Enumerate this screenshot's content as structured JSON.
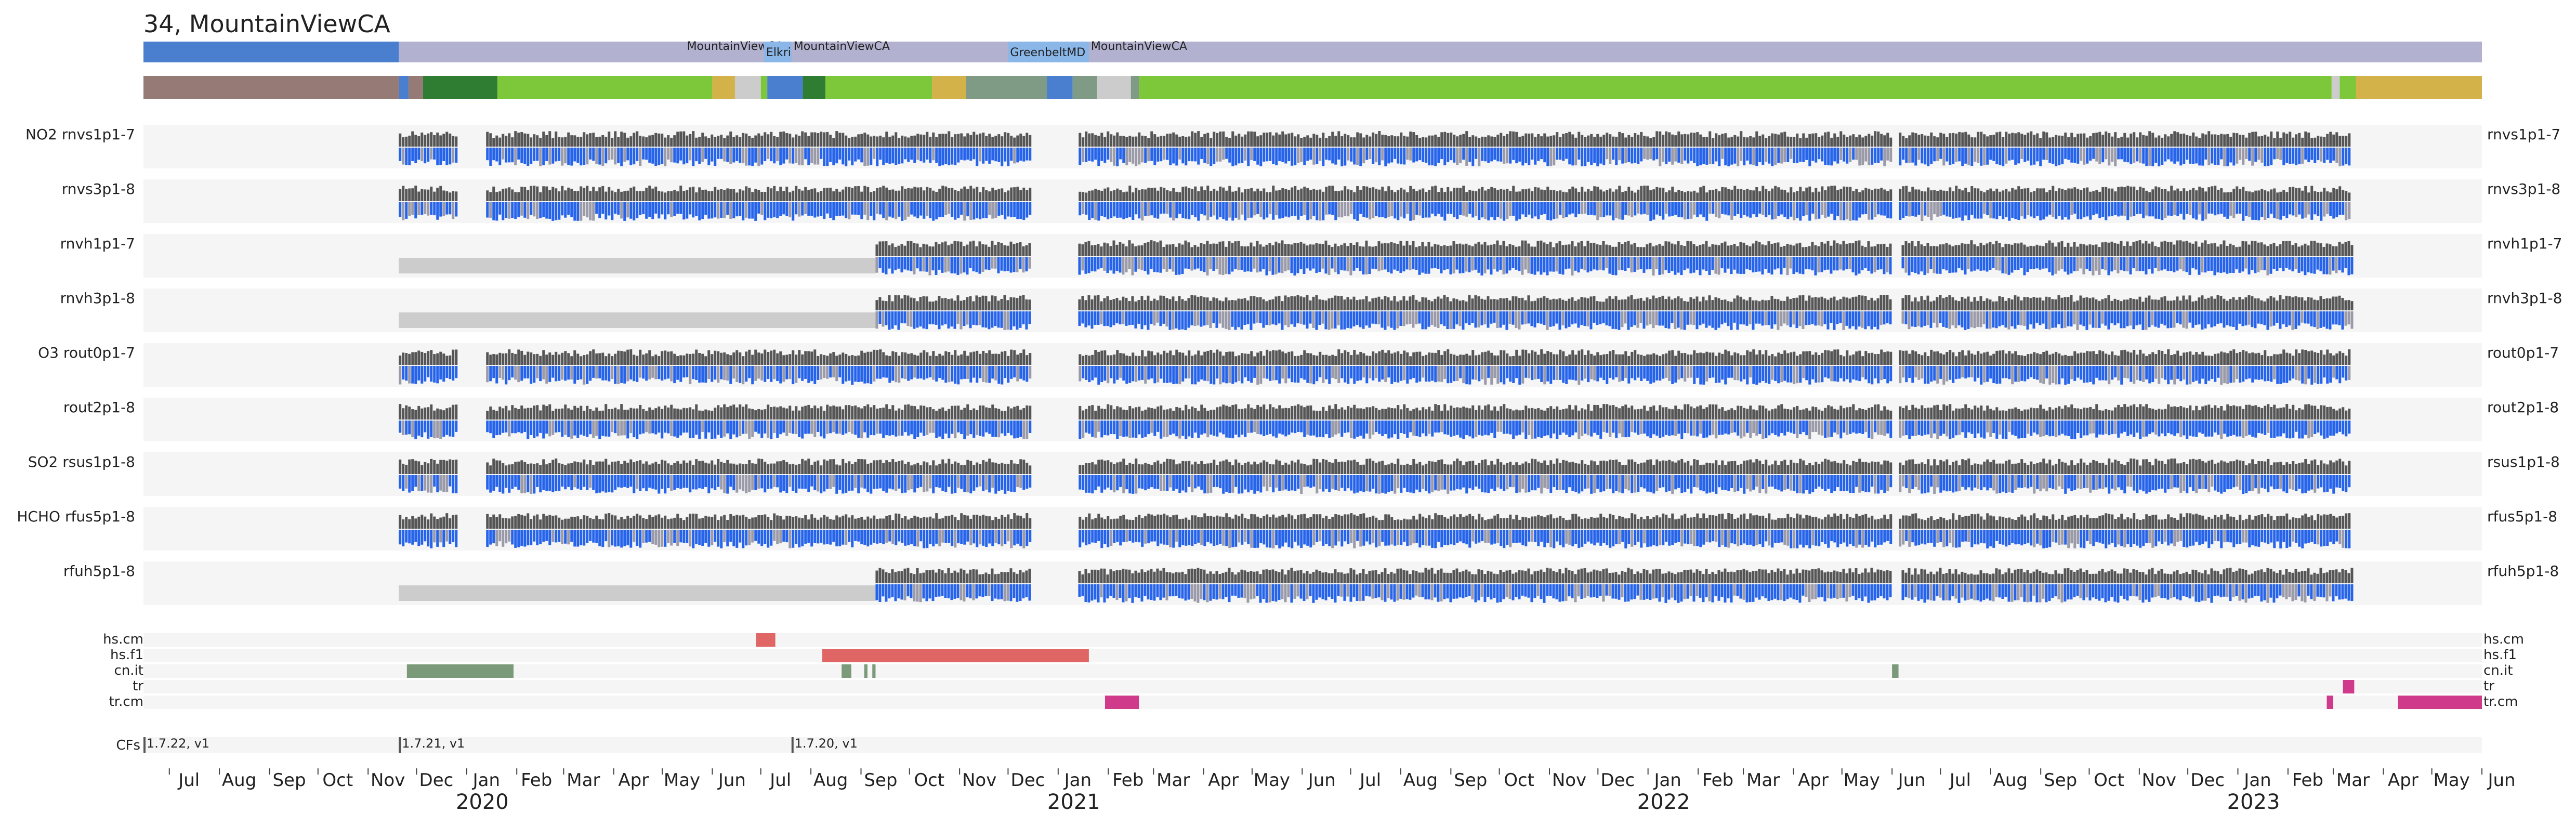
{
  "title": "34, MountainViewCA",
  "colors": {
    "panel_bg": "#f5f5f5",
    "upper_bar": "#555555",
    "lower_fill": "#2563eb",
    "lower_mix": "#9a9aa8",
    "missing": "#cccccc",
    "location_band": "#b2b2d0",
    "location_main": "#4a7fcf",
    "location_highlight": "#8ab6e8",
    "flag_hs_cm": "#e06666",
    "flag_hs_f1": "#e06666",
    "flag_cn_it": "#7a9a7a",
    "flag_tr": "#d03a8a",
    "flag_tr_cm": "#d03a8a",
    "timeline_palette": {
      "brown": "#967a76",
      "dkgreen": "#2e7d32",
      "green": "#7dc73a",
      "gold": "#d4b24a",
      "blue": "#4a7fcf",
      "sage": "#7f9a85",
      "gray": "#cccccc"
    }
  },
  "chart_data": {
    "type": "timeline",
    "x_range": [
      "2019-06-15",
      "2023-06-01"
    ],
    "year_labels": [
      "2020",
      "2021",
      "2022",
      "2023"
    ],
    "year_dates": [
      "2020-01-01",
      "2021-01-01",
      "2022-01-01",
      "2023-01-01"
    ],
    "month_ticks": [
      {
        "label": "Jul",
        "date": "2019-07-01"
      },
      {
        "label": "Aug",
        "date": "2019-08-01"
      },
      {
        "label": "Sep",
        "date": "2019-09-01"
      },
      {
        "label": "Oct",
        "date": "2019-10-01"
      },
      {
        "label": "Nov",
        "date": "2019-11-01"
      },
      {
        "label": "Dec",
        "date": "2019-12-01"
      },
      {
        "label": "Jan",
        "date": "2020-01-01"
      },
      {
        "label": "Feb",
        "date": "2020-02-01"
      },
      {
        "label": "Mar",
        "date": "2020-03-01"
      },
      {
        "label": "Apr",
        "date": "2020-04-01"
      },
      {
        "label": "May",
        "date": "2020-05-01"
      },
      {
        "label": "Jun",
        "date": "2020-06-01"
      },
      {
        "label": "Jul",
        "date": "2020-07-01"
      },
      {
        "label": "Aug",
        "date": "2020-08-01"
      },
      {
        "label": "Sep",
        "date": "2020-09-01"
      },
      {
        "label": "Oct",
        "date": "2020-10-01"
      },
      {
        "label": "Nov",
        "date": "2020-11-01"
      },
      {
        "label": "Dec",
        "date": "2020-12-01"
      },
      {
        "label": "Jan",
        "date": "2021-01-01"
      },
      {
        "label": "Feb",
        "date": "2021-02-01"
      },
      {
        "label": "Mar",
        "date": "2021-03-01"
      },
      {
        "label": "Apr",
        "date": "2021-04-01"
      },
      {
        "label": "May",
        "date": "2021-05-01"
      },
      {
        "label": "Jun",
        "date": "2021-06-01"
      },
      {
        "label": "Jul",
        "date": "2021-07-01"
      },
      {
        "label": "Aug",
        "date": "2021-08-01"
      },
      {
        "label": "Sep",
        "date": "2021-09-01"
      },
      {
        "label": "Oct",
        "date": "2021-10-01"
      },
      {
        "label": "Nov",
        "date": "2021-11-01"
      },
      {
        "label": "Dec",
        "date": "2021-12-01"
      },
      {
        "label": "Jan",
        "date": "2022-01-01"
      },
      {
        "label": "Feb",
        "date": "2022-02-01"
      },
      {
        "label": "Mar",
        "date": "2022-03-01"
      },
      {
        "label": "Apr",
        "date": "2022-04-01"
      },
      {
        "label": "May",
        "date": "2022-05-01"
      },
      {
        "label": "Jun",
        "date": "2022-06-01"
      },
      {
        "label": "Jul",
        "date": "2022-07-01"
      },
      {
        "label": "Aug",
        "date": "2022-08-01"
      },
      {
        "label": "Sep",
        "date": "2022-09-01"
      },
      {
        "label": "Oct",
        "date": "2022-10-01"
      },
      {
        "label": "Nov",
        "date": "2022-11-01"
      },
      {
        "label": "Dec",
        "date": "2022-12-01"
      },
      {
        "label": "Jan",
        "date": "2023-01-01"
      },
      {
        "label": "Feb",
        "date": "2023-02-01"
      },
      {
        "label": "Mar",
        "date": "2023-03-01"
      },
      {
        "label": "Apr",
        "date": "2023-04-01"
      },
      {
        "label": "May",
        "date": "2023-05-01"
      },
      {
        "label": "Jun",
        "date": "2023-06-01"
      }
    ],
    "locations": [
      {
        "label": "",
        "start": "2019-06-15",
        "end": "2019-11-20",
        "kind": "main"
      },
      {
        "label": "MountainViewCA",
        "start": "2020-05-15",
        "end": "2020-05-20",
        "kind": "band"
      },
      {
        "label": "ElkridgeMD",
        "start": "2020-07-03",
        "end": "2020-07-20",
        "kind": "highlight"
      },
      {
        "label": "MountainViewCA",
        "start": "2020-07-20",
        "end": "2020-12-01",
        "kind": "band"
      },
      {
        "label": "GreenbeltMD",
        "start": "2020-12-01",
        "end": "2021-01-20",
        "kind": "highlight"
      },
      {
        "label": "MountainViewCA",
        "start": "2021-01-20",
        "end": "2023-06-01",
        "kind": "band"
      }
    ],
    "status_timeline": [
      {
        "start": "2019-06-15",
        "end": "2019-11-20",
        "color": "brown"
      },
      {
        "start": "2019-11-20",
        "end": "2019-11-26",
        "color": "blue"
      },
      {
        "start": "2019-11-26",
        "end": "2019-12-05",
        "color": "brown"
      },
      {
        "start": "2019-12-05",
        "end": "2020-01-20",
        "color": "dkgreen"
      },
      {
        "start": "2020-01-20",
        "end": "2020-06-01",
        "color": "green"
      },
      {
        "start": "2020-06-01",
        "end": "2020-06-15",
        "color": "gold"
      },
      {
        "start": "2020-06-15",
        "end": "2020-07-01",
        "color": "gray"
      },
      {
        "start": "2020-07-01",
        "end": "2020-07-05",
        "color": "green"
      },
      {
        "start": "2020-07-05",
        "end": "2020-07-27",
        "color": "blue"
      },
      {
        "start": "2020-07-27",
        "end": "2020-08-10",
        "color": "dkgreen"
      },
      {
        "start": "2020-08-10",
        "end": "2020-10-15",
        "color": "green"
      },
      {
        "start": "2020-10-15",
        "end": "2020-11-05",
        "color": "gold"
      },
      {
        "start": "2020-11-05",
        "end": "2020-12-25",
        "color": "sage"
      },
      {
        "start": "2020-12-25",
        "end": "2021-01-10",
        "color": "blue"
      },
      {
        "start": "2021-01-10",
        "end": "2021-01-25",
        "color": "sage"
      },
      {
        "start": "2021-01-25",
        "end": "2021-02-15",
        "color": "gray"
      },
      {
        "start": "2021-02-15",
        "end": "2021-02-20",
        "color": "sage"
      },
      {
        "start": "2021-02-20",
        "end": "2023-02-28",
        "color": "green"
      },
      {
        "start": "2023-02-28",
        "end": "2023-03-05",
        "color": "gray"
      },
      {
        "start": "2023-03-05",
        "end": "2023-03-15",
        "color": "green"
      },
      {
        "start": "2023-03-15",
        "end": "2023-06-01",
        "color": "gold"
      }
    ],
    "products": [
      {
        "group": "NO2",
        "name": "rnvs1p1-7",
        "start": "2019-11-20",
        "gap": [
          [
            "2019-12-25",
            "2020-01-12"
          ],
          [
            "2020-12-15",
            "2021-01-12"
          ],
          [
            "2022-06-01",
            "2022-06-05"
          ]
        ],
        "early_fill": false
      },
      {
        "group": "",
        "name": "rnvs3p1-8",
        "start": "2019-11-20",
        "gap": [
          [
            "2019-12-25",
            "2020-01-12"
          ],
          [
            "2020-12-15",
            "2021-01-12"
          ],
          [
            "2022-06-01",
            "2022-06-05"
          ]
        ],
        "early_fill": false
      },
      {
        "group": "",
        "name": "rnvh1p1-7",
        "start": "2020-09-10",
        "gap": [
          [
            "2019-12-25",
            "2020-01-12"
          ],
          [
            "2020-12-15",
            "2021-01-12"
          ],
          [
            "2022-06-01",
            "2022-06-05"
          ]
        ],
        "early_fill": true
      },
      {
        "group": "",
        "name": "rnvh3p1-8",
        "start": "2020-09-10",
        "gap": [
          [
            "2019-12-25",
            "2020-01-12"
          ],
          [
            "2020-12-15",
            "2021-01-12"
          ],
          [
            "2022-06-01",
            "2022-06-05"
          ]
        ],
        "early_fill": true
      },
      {
        "group": "O3",
        "name": "rout0p1-7",
        "start": "2019-11-20",
        "gap": [
          [
            "2019-12-25",
            "2020-01-12"
          ],
          [
            "2020-12-15",
            "2021-01-12"
          ],
          [
            "2022-06-01",
            "2022-06-05"
          ]
        ],
        "early_fill": false
      },
      {
        "group": "",
        "name": "rout2p1-8",
        "start": "2019-11-20",
        "gap": [
          [
            "2019-12-25",
            "2020-01-12"
          ],
          [
            "2020-12-15",
            "2021-01-12"
          ],
          [
            "2022-06-01",
            "2022-06-05"
          ]
        ],
        "early_fill": false
      },
      {
        "group": "SO2",
        "name": "rsus1p1-8",
        "start": "2019-11-20",
        "gap": [
          [
            "2019-12-25",
            "2020-01-12"
          ],
          [
            "2020-12-15",
            "2021-01-12"
          ],
          [
            "2022-06-01",
            "2022-06-05"
          ]
        ],
        "early_fill": false
      },
      {
        "group": "HCHO",
        "name": "rfus5p1-8",
        "start": "2019-11-20",
        "gap": [
          [
            "2019-12-25",
            "2020-01-12"
          ],
          [
            "2020-12-15",
            "2021-01-12"
          ],
          [
            "2022-06-01",
            "2022-06-05"
          ]
        ],
        "early_fill": false
      },
      {
        "group": "",
        "name": "rfuh5p1-8",
        "start": "2020-09-10",
        "gap": [
          [
            "2019-12-25",
            "2020-01-12"
          ],
          [
            "2020-12-15",
            "2021-01-12"
          ],
          [
            "2022-06-01",
            "2022-06-05"
          ]
        ],
        "early_fill": true
      }
    ],
    "flags": [
      {
        "name": "hs.cm",
        "segments": [
          [
            "2020-06-28",
            "2020-07-10"
          ]
        ]
      },
      {
        "name": "hs.f1",
        "segments": [
          [
            "2020-08-08",
            "2021-01-20"
          ]
        ]
      },
      {
        "name": "cn.it",
        "segments": [
          [
            "2019-11-25",
            "2020-01-30"
          ],
          [
            "2020-08-20",
            "2020-08-26"
          ],
          [
            "2020-09-03",
            "2020-09-05"
          ],
          [
            "2020-09-08",
            "2020-09-10"
          ],
          [
            "2022-06-01",
            "2022-06-05"
          ]
        ]
      },
      {
        "name": "tr",
        "segments": [
          [
            "2023-03-07",
            "2023-03-14"
          ]
        ]
      },
      {
        "name": "tr.cm",
        "segments": [
          [
            "2021-01-30",
            "2021-02-20"
          ],
          [
            "2023-02-25",
            "2023-03-01"
          ],
          [
            "2023-04-10",
            "2023-06-01"
          ]
        ]
      }
    ],
    "cfs_label": "CFs",
    "cfs_versions": [
      {
        "label": "1.7.22, v1",
        "date": "2019-06-15"
      },
      {
        "label": "1.7.21, v1",
        "date": "2019-11-20"
      },
      {
        "label": "1.7.20, v1",
        "date": "2020-07-20"
      }
    ]
  }
}
